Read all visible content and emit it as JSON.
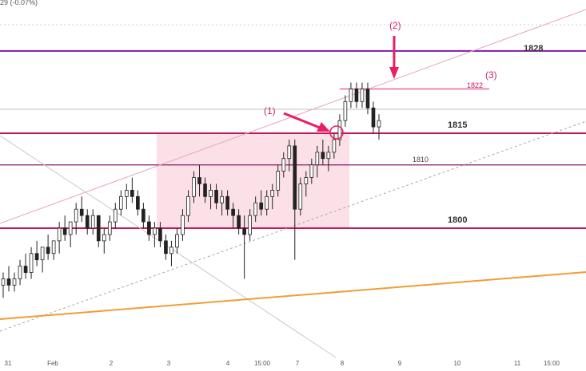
{
  "header": {
    "text": "29 (-0.07%)"
  },
  "chart_data": {
    "type": "candlestick",
    "ylim": [
      1788,
      1838
    ],
    "x_ticks": [
      "31",
      "Feb",
      "2",
      "3",
      "4",
      "15:00",
      "7",
      "8",
      "9",
      "10",
      "11",
      "15:00"
    ],
    "levels": [
      {
        "label": "1828",
        "value": 1828,
        "color": "#7b1fa2"
      },
      {
        "label": "1815",
        "value": 1815,
        "color": "#c2185b"
      },
      {
        "label": "1810",
        "value": 1810,
        "color": "#8e2a6a"
      },
      {
        "label": "1800",
        "value": 1800,
        "color": "#c2185b"
      }
    ],
    "short_level": {
      "label": "1822",
      "value": 1822,
      "color": "#e8659b"
    },
    "annotations": [
      {
        "label": "(1)"
      },
      {
        "label": "(2)"
      },
      {
        "label": "(3)"
      }
    ],
    "colors": {
      "highlight_zone": "#f7c6d3",
      "upper_channel": "#e7a3c4",
      "trendline": "#f39c34",
      "price_line": "#bdbdbd",
      "arrow": "#e91e63",
      "candle": "#222222"
    },
    "candles_ohlc": [
      [
        1791,
        1793,
        1789,
        1792
      ],
      [
        1792,
        1794,
        1790,
        1791
      ],
      [
        1791,
        1793,
        1790,
        1792
      ],
      [
        1792,
        1795,
        1791,
        1794
      ],
      [
        1794,
        1796,
        1792,
        1793
      ],
      [
        1793,
        1797,
        1792,
        1796
      ],
      [
        1796,
        1798,
        1794,
        1795
      ],
      [
        1795,
        1797,
        1793,
        1797
      ],
      [
        1797,
        1799,
        1795,
        1796
      ],
      [
        1796,
        1798,
        1795,
        1798
      ],
      [
        1798,
        1801,
        1796,
        1800
      ],
      [
        1800,
        1802,
        1798,
        1799
      ],
      [
        1799,
        1801,
        1797,
        1801
      ],
      [
        1801,
        1804,
        1799,
        1803
      ],
      [
        1803,
        1805,
        1801,
        1802
      ],
      [
        1802,
        1803,
        1799,
        1800
      ],
      [
        1800,
        1803,
        1799,
        1802
      ],
      [
        1802,
        1801,
        1797,
        1798
      ],
      [
        1798,
        1800,
        1796,
        1799
      ],
      [
        1799,
        1802,
        1798,
        1801
      ],
      [
        1801,
        1804,
        1800,
        1803
      ],
      [
        1803,
        1806,
        1802,
        1805
      ],
      [
        1805,
        1807,
        1803,
        1806
      ],
      [
        1806,
        1808,
        1804,
        1805
      ],
      [
        1805,
        1806,
        1802,
        1803
      ],
      [
        1803,
        1804,
        1800,
        1801
      ],
      [
        1801,
        1802,
        1798,
        1799
      ],
      [
        1799,
        1801,
        1797,
        1800
      ],
      [
        1800,
        1801,
        1797,
        1798
      ],
      [
        1798,
        1799,
        1795,
        1796
      ],
      [
        1796,
        1798,
        1794,
        1797
      ],
      [
        1797,
        1800,
        1796,
        1799
      ],
      [
        1799,
        1803,
        1798,
        1802
      ],
      [
        1802,
        1806,
        1801,
        1805
      ],
      [
        1805,
        1809,
        1804,
        1808
      ],
      [
        1808,
        1810,
        1805,
        1807
      ],
      [
        1807,
        1808,
        1804,
        1805
      ],
      [
        1805,
        1807,
        1803,
        1806
      ],
      [
        1806,
        1807,
        1803,
        1804
      ],
      [
        1804,
        1806,
        1802,
        1805
      ],
      [
        1805,
        1806,
        1802,
        1803
      ],
      [
        1803,
        1804,
        1800,
        1802
      ],
      [
        1802,
        1803,
        1799,
        1800
      ],
      [
        1800,
        1802,
        1792,
        1799
      ],
      [
        1799,
        1803,
        1798,
        1802
      ],
      [
        1802,
        1805,
        1801,
        1804
      ],
      [
        1804,
        1806,
        1802,
        1803
      ],
      [
        1803,
        1806,
        1802,
        1805
      ],
      [
        1805,
        1807,
        1803,
        1806
      ],
      [
        1806,
        1810,
        1805,
        1809
      ],
      [
        1809,
        1812,
        1808,
        1811
      ],
      [
        1811,
        1814,
        1809,
        1813
      ],
      [
        1813,
        1814,
        1795,
        1803
      ],
      [
        1803,
        1808,
        1802,
        1807
      ],
      [
        1807,
        1809,
        1805,
        1808
      ],
      [
        1808,
        1811,
        1807,
        1810
      ],
      [
        1810,
        1813,
        1808,
        1812
      ],
      [
        1812,
        1814,
        1810,
        1811
      ],
      [
        1811,
        1813,
        1809,
        1812
      ],
      [
        1812,
        1815,
        1811,
        1814
      ],
      [
        1814,
        1818,
        1813,
        1817
      ],
      [
        1817,
        1821,
        1816,
        1820
      ],
      [
        1820,
        1823,
        1819,
        1822
      ],
      [
        1822,
        1823,
        1819,
        1820
      ],
      [
        1820,
        1823,
        1819,
        1822
      ],
      [
        1822,
        1823,
        1818,
        1819
      ],
      [
        1819,
        1820,
        1815,
        1816
      ],
      [
        1816,
        1818,
        1814,
        1817
      ]
    ]
  }
}
